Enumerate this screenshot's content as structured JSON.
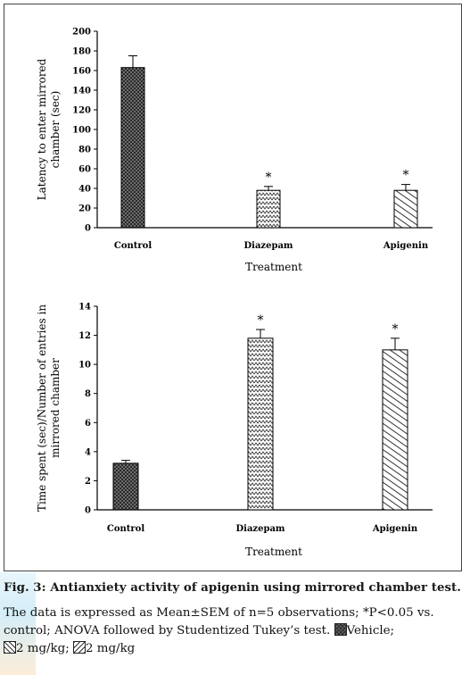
{
  "chart_data": [
    {
      "type": "bar",
      "categories": [
        "Control",
        "Diazepam",
        "Apigenin"
      ],
      "values": [
        163,
        38,
        38
      ],
      "errors": [
        12,
        4,
        6
      ],
      "significance": [
        "",
        "*",
        "*"
      ],
      "ylim": [
        0,
        200
      ],
      "yticks": [
        0,
        20,
        40,
        60,
        80,
        100,
        120,
        140,
        160,
        180,
        200
      ],
      "xlabel": "Treatment",
      "ylabel_lines": [
        "Latency to enter mirrored",
        "chamber (sec)"
      ],
      "grid": false
    },
    {
      "type": "bar",
      "categories": [
        "Control",
        "Diazepam",
        "Apigenin"
      ],
      "values": [
        3.2,
        11.8,
        11.0
      ],
      "errors": [
        0.2,
        0.6,
        0.8
      ],
      "significance": [
        "",
        "*",
        "*"
      ],
      "ylim": [
        0,
        14
      ],
      "yticks": [
        0,
        2,
        4,
        6,
        8,
        10,
        12,
        14
      ],
      "xlabel": "Treatment",
      "ylabel_lines": [
        "Time spent (sec)/Number of entries in",
        "mirrored chamber"
      ],
      "grid": false
    }
  ],
  "caption": {
    "title": "Fig. 3: Antianxiety activity of apigenin using mirrored chamber test.",
    "line1": "The data is expressed as Mean±SEM of n=5 observations; *P<0.05 vs.",
    "line2_before": "control; ANOVA followed by Studentized Tukey’s test. ",
    "legend_vehicle": "Vehicle;",
    "line3_a": "2 mg/kg; ",
    "line3_b": "2 mg/kg"
  },
  "colors": {
    "bar_outline": "#000000",
    "vehicle_fill": "#6a6a6a",
    "pattern_ink": "#333333"
  }
}
